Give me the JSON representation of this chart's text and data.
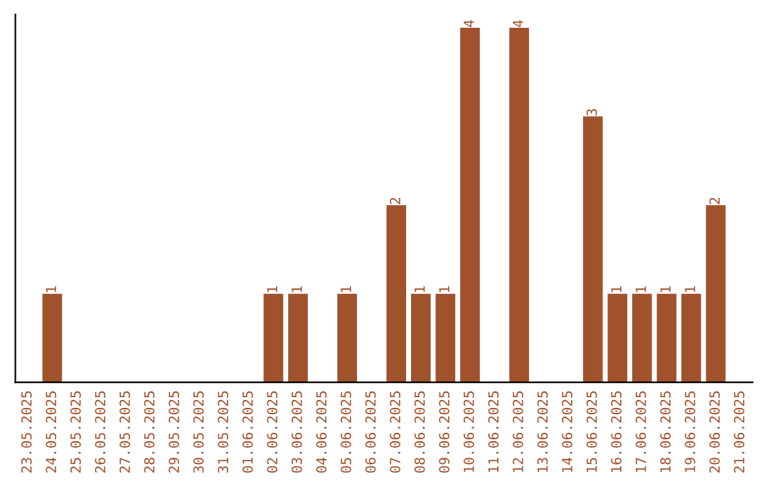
{
  "chart_data": {
    "type": "bar",
    "categories": [
      "23.05.2025",
      "24.05.2025",
      "25.05.2025",
      "26.05.2025",
      "27.05.2025",
      "28.05.2025",
      "29.05.2025",
      "30.05.2025",
      "31.05.2025",
      "01.06.2025",
      "02.06.2025",
      "03.06.2025",
      "04.06.2025",
      "05.06.2025",
      "06.06.2025",
      "07.06.2025",
      "08.06.2025",
      "09.06.2025",
      "10.06.2025",
      "11.06.2025",
      "12.06.2025",
      "13.06.2025",
      "14.06.2025",
      "15.06.2025",
      "16.06.2025",
      "17.06.2025",
      "18.06.2025",
      "19.06.2025",
      "20.06.2025",
      "21.06.2025"
    ],
    "values": [
      0,
      1,
      0,
      0,
      0,
      0,
      0,
      0,
      0,
      0,
      1,
      1,
      0,
      1,
      0,
      2,
      1,
      1,
      4,
      0,
      4,
      0,
      0,
      3,
      1,
      1,
      1,
      1,
      2,
      0
    ],
    "value_labels": [
      null,
      "1",
      null,
      null,
      null,
      null,
      null,
      null,
      null,
      null,
      "1",
      "1",
      null,
      "1",
      null,
      "2",
      "1",
      "1",
      "4",
      null,
      "4",
      null,
      null,
      "3",
      "1",
      "1",
      "1",
      "1",
      "2",
      null
    ],
    "color": "#a0522d",
    "ylim": [
      0,
      4.15
    ],
    "tick_labels": "x",
    "grid": false,
    "legend": false
  }
}
